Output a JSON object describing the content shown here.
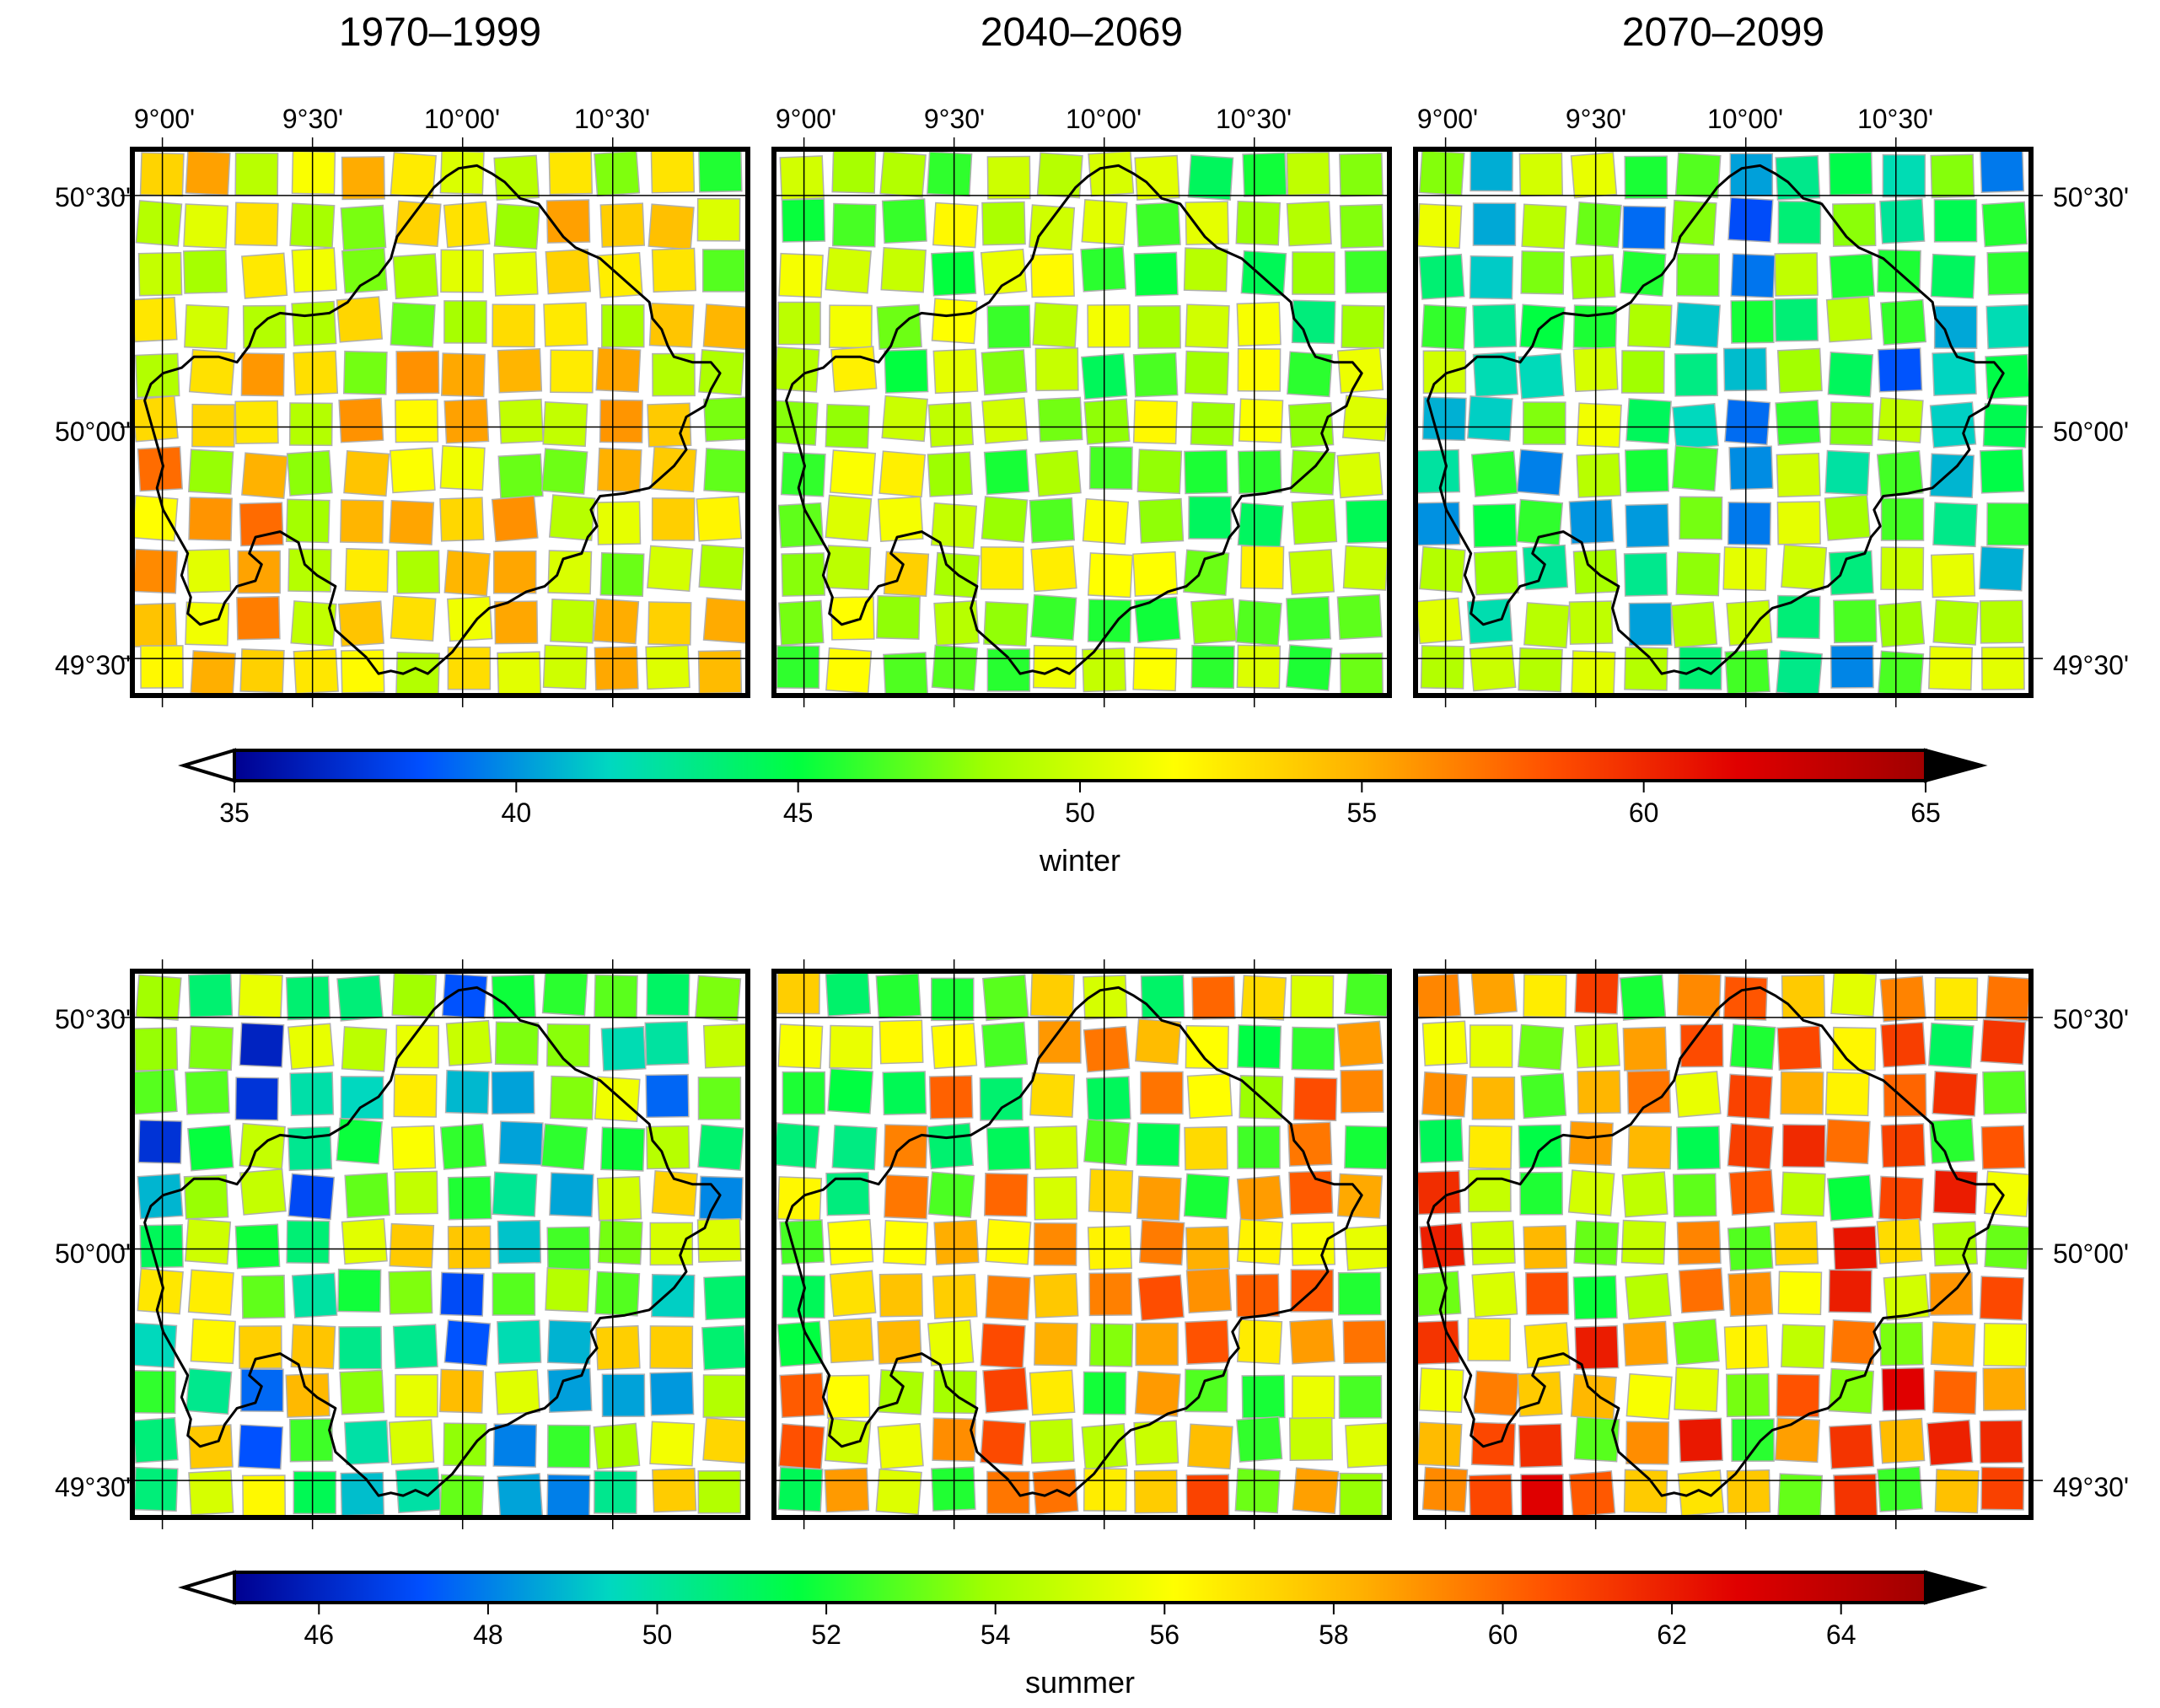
{
  "columns": [
    {
      "title": "1970–1999"
    },
    {
      "title": "2040–2069"
    },
    {
      "title": "2070–2099"
    }
  ],
  "lon_tick_labels": [
    "9°00'",
    "9°30'",
    "10°00'",
    "10°30'"
  ],
  "lat_tick_labels": [
    "50°30'",
    "50°00'",
    "49°30'"
  ],
  "lon_ticks_deg": [
    9.0,
    9.5,
    10.0,
    10.5
  ],
  "lat_ticks_deg": [
    50.5,
    50.0,
    49.5
  ],
  "map_extent": {
    "lon_min": 8.9,
    "lon_max": 10.95,
    "lat_min": 49.42,
    "lat_max": 50.6
  },
  "rows": [
    {
      "season": "winter",
      "colorbar": {
        "label": "winter",
        "min": 35,
        "max": 65,
        "tick_values": [
          35,
          40,
          45,
          50,
          55,
          60,
          65
        ],
        "tick_labels": [
          "35",
          "40",
          "45",
          "50",
          "55",
          "60",
          "65"
        ],
        "below_range_color": "#ffffff",
        "above_range_color": "#000000"
      }
    },
    {
      "season": "summer",
      "colorbar": {
        "label": "summer",
        "min": 45,
        "max": 65,
        "tick_values": [
          46,
          48,
          50,
          52,
          54,
          56,
          58,
          60,
          62,
          64
        ],
        "tick_labels": [
          "46",
          "48",
          "50",
          "52",
          "54",
          "56",
          "58",
          "60",
          "62",
          "64"
        ],
        "below_range_color": "#ffffff",
        "above_range_color": "#000000"
      }
    }
  ],
  "colormap": {
    "stops": [
      "#000090",
      "#0050ff",
      "#00d8c0",
      "#00ff40",
      "#a0ff00",
      "#ffff00",
      "#ffb000",
      "#ff5000",
      "#e00000",
      "#a00000"
    ]
  },
  "map_data": {
    "type": "gridded station map",
    "grid": {
      "cols": 12,
      "rows": 11
    },
    "panels": [
      {
        "row": "winter",
        "period": "1970–1999",
        "mean_value": 52,
        "spread": 3.5
      },
      {
        "row": "winter",
        "period": "2040–2069",
        "mean_value": 48.5,
        "spread": 3
      },
      {
        "row": "winter",
        "period": "2070–2099",
        "mean_value": 45,
        "spread": 4.5
      },
      {
        "row": "summer",
        "period": "1970–1999",
        "mean_value": 52.5,
        "spread": 4
      },
      {
        "row": "summer",
        "period": "2040–2069",
        "mean_value": 56,
        "spread": 3.5
      },
      {
        "row": "summer",
        "period": "2070–2099",
        "mean_value": 57,
        "spread": 4
      }
    ]
  }
}
